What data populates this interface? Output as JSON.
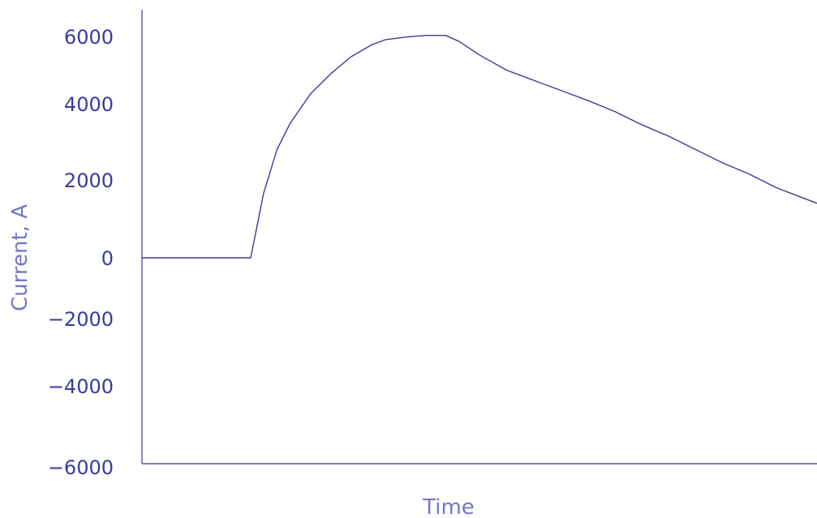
{
  "colors": {
    "line": "#3b3b9a",
    "axis": "#3b3b9a",
    "y_tick_label": "#3b3b9a",
    "axis_label": "#7777c8",
    "background": "#ffffff"
  },
  "chart_data": {
    "type": "line",
    "title": "",
    "xlabel": "Time",
    "ylabel": "Current, A",
    "ylim": [
      -6000,
      6000
    ],
    "yticks": [
      6000,
      4000,
      2000,
      0,
      -2000,
      -4000,
      -6000
    ],
    "ytick_labels": [
      "6000",
      "4000",
      "2000",
      "0",
      "−2000",
      "−4000",
      "−6000"
    ],
    "x_tick_labels_shown": false,
    "xlim": [
      0,
      1
    ],
    "grid": false,
    "series": [
      {
        "x": [
          0,
          0.161,
          0.168,
          0.18,
          0.2,
          0.22,
          0.25,
          0.28,
          0.31,
          0.34,
          0.36,
          0.39,
          0.42,
          0.45,
          0.47,
          0.5,
          0.54,
          0.58,
          0.62,
          0.66,
          0.7,
          0.74,
          0.78,
          0.82,
          0.86,
          0.9,
          0.94,
          0.97,
          1.0
        ],
        "y": [
          0,
          0,
          600,
          1650,
          2800,
          3500,
          4300,
          4900,
          5400,
          5750,
          5900,
          5980,
          6030,
          6030,
          5850,
          5450,
          5000,
          4700,
          4400,
          4100,
          3800,
          3450,
          3150,
          2800,
          2450,
          2150,
          1800,
          1600,
          1400
        ]
      }
    ]
  }
}
